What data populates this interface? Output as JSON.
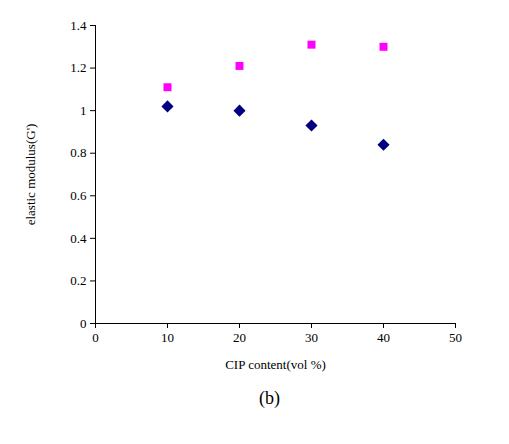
{
  "chart_data": {
    "type": "scatter",
    "x_label": "CIP content(vol %)",
    "y_label": "elastic modulus(G')",
    "caption": "(b)",
    "xlim": [
      0,
      50
    ],
    "xticks": [
      0,
      10,
      20,
      30,
      40,
      50
    ],
    "ylim": [
      0,
      1.4
    ],
    "yticks": [
      0,
      0.2,
      0.4,
      0.6,
      0.8,
      1,
      1.2,
      1.4
    ],
    "grid": false,
    "series": [
      {
        "color": "#ff00ff",
        "marker": "square",
        "x": [
          10,
          20,
          30,
          40
        ],
        "values": [
          1.11,
          1.21,
          1.31,
          1.3
        ]
      },
      {
        "color": "#000080",
        "marker": "diamond",
        "x": [
          10,
          20,
          30,
          40
        ],
        "values": [
          1.02,
          1.0,
          0.93,
          0.84
        ]
      }
    ]
  }
}
